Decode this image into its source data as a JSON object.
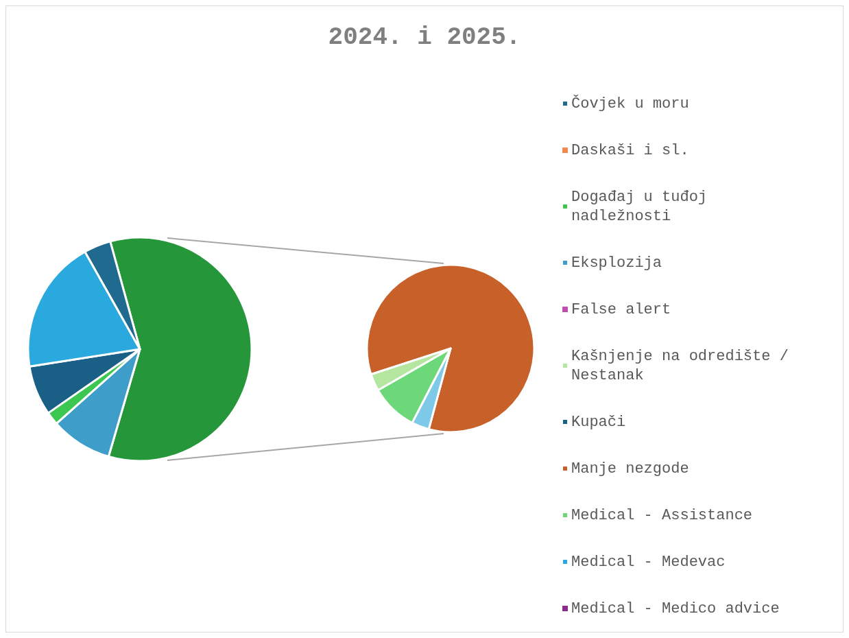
{
  "chart_data": [
    {
      "type": "pie",
      "title": "2024. i 2025.",
      "legend": "right",
      "categories": [
        null,
        "Eksplozija",
        "Događaj u tuđoj nadležnosti",
        "Kupači",
        "Medical - Medevac",
        "Čovjek u moru"
      ],
      "values": [
        58.8,
        8.9,
        1.9,
        7.2,
        19.3,
        3.9
      ],
      "colors": [
        "#26963a",
        "#3f9ec9",
        "#3cc850",
        "#1a5f85",
        "#29a9dd",
        "#1f6a8e"
      ]
    },
    {
      "type": "pie",
      "legend": "right",
      "categories": [
        "Manje nezgode",
        null,
        "Medical - Assistance",
        "Kašnjenje na odredište / Nestanak",
        "Daskaši i sl.",
        "False alert",
        "Medical - Medico advice"
      ],
      "values": [
        84.2,
        3.4,
        9.1,
        3.3,
        0,
        0,
        0
      ],
      "colors": [
        "#c8602a",
        "#7ec8e8",
        "#6cd87a",
        "#b5e6a0",
        "#f08a50",
        "#c050b0",
        "#8a2a8a"
      ]
    }
  ]
}
